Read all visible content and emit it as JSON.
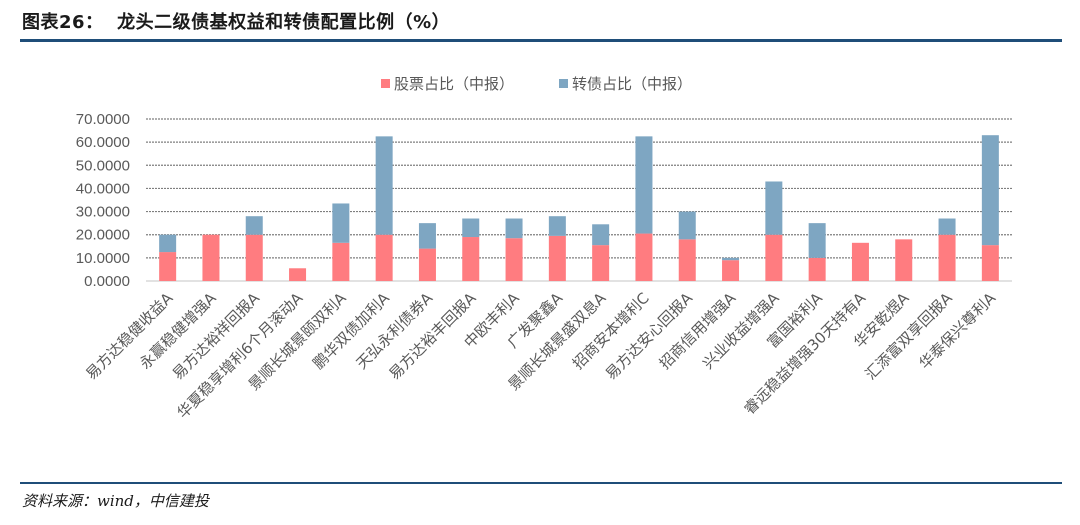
{
  "header": {
    "title": "图表26：  龙头二级债基权益和转债配置比例（%）"
  },
  "footer": {
    "source": "资料来源：wind，中信建投"
  },
  "colors": {
    "stock": "#ff7c80",
    "cb": "#7ea6c2",
    "accent": "#1f4e79"
  },
  "chart_data": {
    "type": "bar",
    "stacked": true,
    "title": "",
    "xlabel": "",
    "ylabel": "",
    "ylim": [
      0,
      70
    ],
    "yticks": [
      "0.0000",
      "10.0000",
      "20.0000",
      "30.0000",
      "40.0000",
      "50.0000",
      "60.0000",
      "70.0000"
    ],
    "grid": true,
    "legend_position": "top-center",
    "categories": [
      "易方达稳健收益A",
      "永赢稳健增强A",
      "易方达裕祥回报A",
      "华夏稳享增利6个月滚动A",
      "景顺长城景颐双利A",
      "鹏华双债加利A",
      "天弘永利债券A",
      "易方达裕丰回报A",
      "中欧丰利A",
      "广发聚鑫A",
      "景顺长城景盛双息A",
      "招商安本增利C",
      "易方达安心回报A",
      "招商信用增强A",
      "兴业收益增强A",
      "富国裕利A",
      "睿远稳益增强30天持有A",
      "华安乾煜A",
      "汇添富双享回报A",
      "华泰保兴尊利A"
    ],
    "series": [
      {
        "name": "股票占比（中报）",
        "values": [
          12.5,
          20,
          20,
          5.5,
          16.5,
          20,
          14,
          19,
          18.5,
          19.5,
          15.5,
          20.5,
          18,
          9,
          20,
          10,
          16.5,
          18,
          20,
          15.5
        ]
      },
      {
        "name": "转债占比（中报）",
        "values": [
          7.5,
          0,
          8,
          0,
          17,
          42.5,
          11,
          8,
          8.5,
          8.5,
          9,
          42,
          12,
          1,
          23,
          15,
          0,
          0,
          7,
          47.5
        ]
      }
    ]
  }
}
